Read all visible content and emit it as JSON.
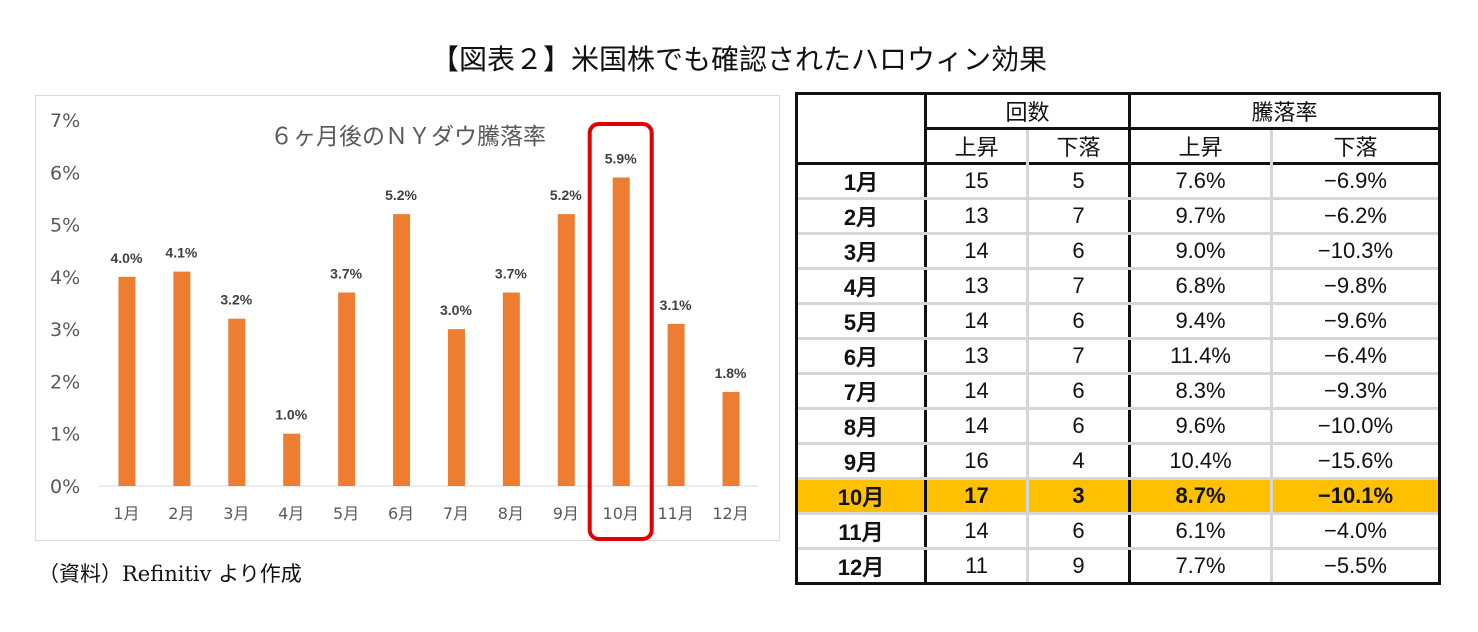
{
  "title": "【図表２】米国株でも確認されたハロウィン効果",
  "source": "（資料）Refinitiv より作成",
  "chart_data": {
    "type": "bar",
    "title": "６ヶ月後のＮＹダウ騰落率",
    "categories": [
      "1月",
      "2月",
      "3月",
      "4月",
      "5月",
      "6月",
      "7月",
      "8月",
      "9月",
      "10月",
      "11月",
      "12月"
    ],
    "values": [
      4.0,
      4.1,
      3.2,
      1.0,
      3.7,
      5.2,
      3.0,
      3.7,
      5.2,
      5.9,
      3.1,
      1.8
    ],
    "data_labels": [
      "4.0%",
      "4.1%",
      "3.2%",
      "1.0%",
      "3.7%",
      "5.2%",
      "3.0%",
      "3.7%",
      "5.2%",
      "5.9%",
      "3.1%",
      "1.8%"
    ],
    "yticks": [
      "0%",
      "1%",
      "2%",
      "3%",
      "4%",
      "5%",
      "6%",
      "7%"
    ],
    "ylim": [
      0,
      7
    ],
    "xlabel": "",
    "ylabel": "",
    "grid": false,
    "bar_color": "#ed7d31",
    "highlight_category": "10月",
    "highlight_color": "#e00000"
  },
  "table": {
    "header_groups": [
      "回数",
      "騰落率"
    ],
    "sub_headers": [
      "上昇",
      "下落",
      "上昇",
      "下落"
    ],
    "highlight_color": "#ffc000",
    "rows": [
      {
        "month": "1月",
        "up": "15",
        "down": "5",
        "up_rate": "7.6%",
        "down_rate": "−6.9%"
      },
      {
        "month": "2月",
        "up": "13",
        "down": "7",
        "up_rate": "9.7%",
        "down_rate": "−6.2%"
      },
      {
        "month": "3月",
        "up": "14",
        "down": "6",
        "up_rate": "9.0%",
        "down_rate": "−10.3%"
      },
      {
        "month": "4月",
        "up": "13",
        "down": "7",
        "up_rate": "6.8%",
        "down_rate": "−9.8%"
      },
      {
        "month": "5月",
        "up": "14",
        "down": "6",
        "up_rate": "9.4%",
        "down_rate": "−9.6%"
      },
      {
        "month": "6月",
        "up": "13",
        "down": "7",
        "up_rate": "11.4%",
        "down_rate": "−6.4%"
      },
      {
        "month": "7月",
        "up": "14",
        "down": "6",
        "up_rate": "8.3%",
        "down_rate": "−9.3%"
      },
      {
        "month": "8月",
        "up": "14",
        "down": "6",
        "up_rate": "9.6%",
        "down_rate": "−10.0%"
      },
      {
        "month": "9月",
        "up": "16",
        "down": "4",
        "up_rate": "10.4%",
        "down_rate": "−15.6%"
      },
      {
        "month": "10月",
        "up": "17",
        "down": "3",
        "up_rate": "8.7%",
        "down_rate": "−10.1%"
      },
      {
        "month": "11月",
        "up": "14",
        "down": "6",
        "up_rate": "6.1%",
        "down_rate": "−4.0%"
      },
      {
        "month": "12月",
        "up": "11",
        "down": "9",
        "up_rate": "7.7%",
        "down_rate": "−5.5%"
      }
    ]
  }
}
